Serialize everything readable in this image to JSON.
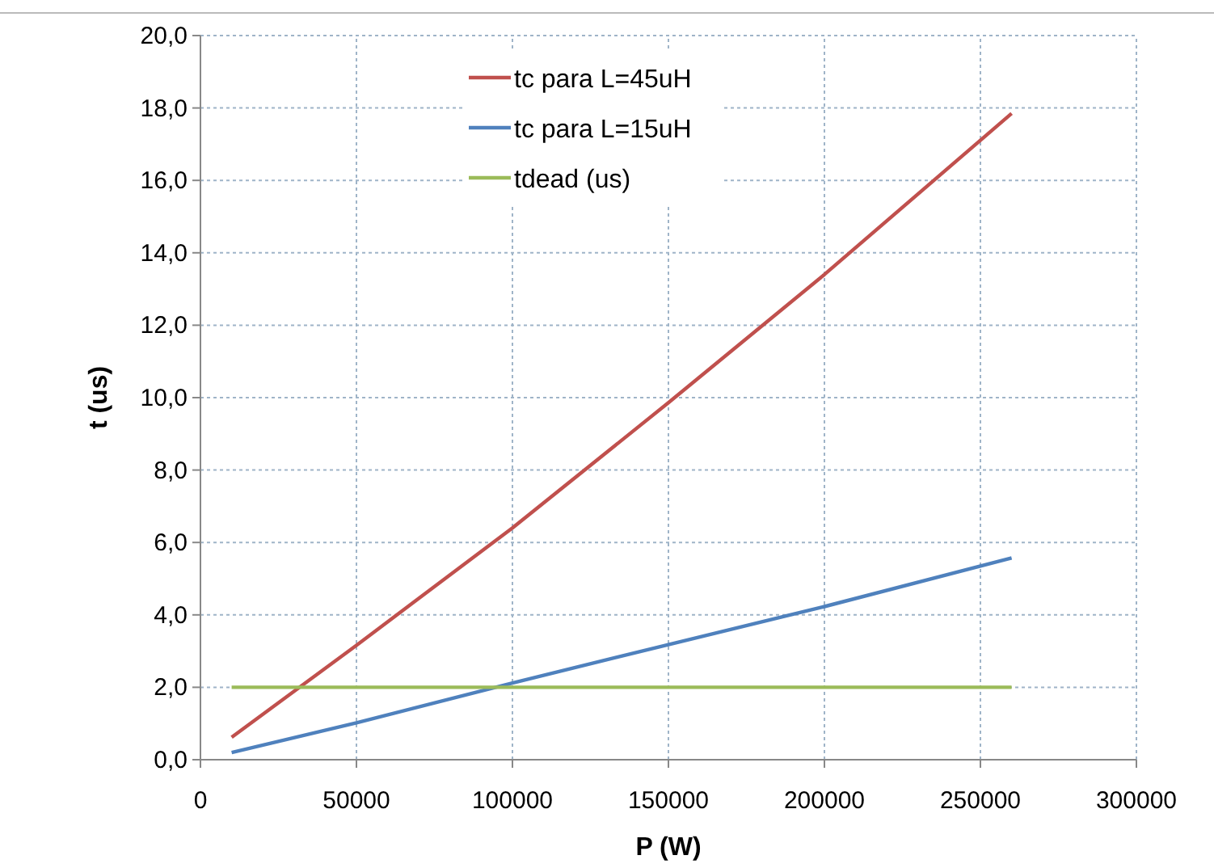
{
  "chart_data": {
    "type": "line",
    "xlabel": "P (W)",
    "ylabel": "t (us)",
    "xlim": [
      0,
      300000
    ],
    "xticks": [
      0,
      50000,
      100000,
      150000,
      200000,
      250000,
      300000
    ],
    "ylim": [
      0,
      20
    ],
    "yticks": [
      {
        "value": 0,
        "label": "0,0"
      },
      {
        "value": 2,
        "label": "2,0"
      },
      {
        "value": 4,
        "label": "4,0"
      },
      {
        "value": 6,
        "label": "6,0"
      },
      {
        "value": 8,
        "label": "8,0"
      },
      {
        "value": 10,
        "label": "10,0"
      },
      {
        "value": 12,
        "label": "12,0"
      },
      {
        "value": 14,
        "label": "14,0"
      },
      {
        "value": 16,
        "label": "16,0"
      },
      {
        "value": 18,
        "label": "18,0"
      },
      {
        "value": 20,
        "label": "20,0"
      }
    ],
    "grid": true,
    "legend": "top",
    "marker": "none",
    "line_style": "solid",
    "x": [
      10000,
      50000,
      100000,
      150000,
      200000,
      260000
    ],
    "series": [
      {
        "name": "tc para L=45uH",
        "color": "#c0504d",
        "values": [
          0.62,
          3.16,
          6.4,
          9.86,
          13.4,
          17.85
        ]
      },
      {
        "name": "tc para L=15uH",
        "color": "#4f81bd",
        "values": [
          0.2,
          1.02,
          2.12,
          3.18,
          4.23,
          5.57
        ]
      },
      {
        "name": "tdead (us)",
        "color": "#9bbb59",
        "values": [
          2,
          2,
          2,
          2,
          2,
          2
        ]
      }
    ]
  }
}
